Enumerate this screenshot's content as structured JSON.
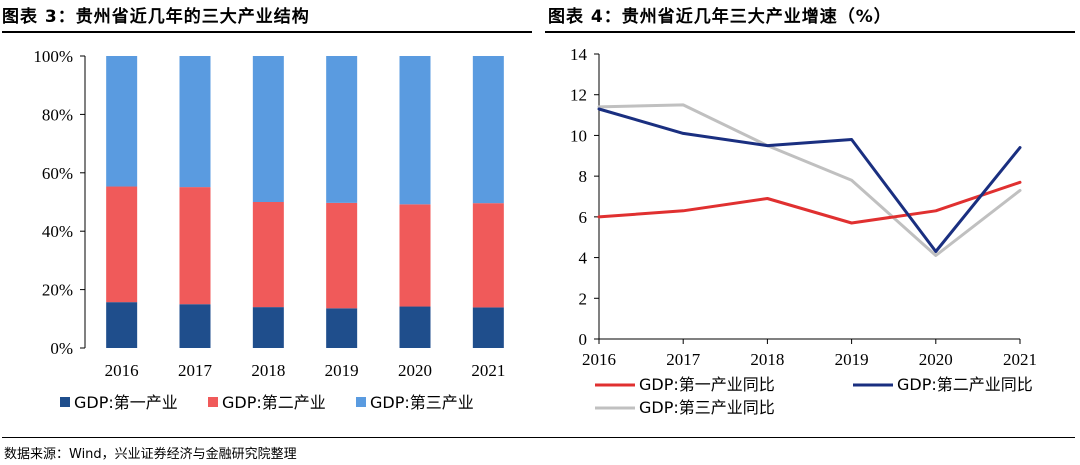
{
  "titles": {
    "left": "图表 3：贵州省近几年的三大产业结构",
    "right": "图表 4：贵州省近几年三大产业增速（%）"
  },
  "source": "数据来源：Wind，兴业证券经济与金融研究院整理",
  "chart_data": [
    {
      "type": "bar",
      "stacked": true,
      "title": "贵州省近几年的三大产业结构",
      "categories": [
        "2016",
        "2017",
        "2018",
        "2019",
        "2020",
        "2021"
      ],
      "yticks": [
        "0%",
        "20%",
        "40%",
        "60%",
        "80%",
        "100%"
      ],
      "ylim": [
        0,
        100
      ],
      "series": [
        {
          "name": "GDP:第一产业",
          "color": "#1f4e8c",
          "values": [
            15.7,
            15.0,
            14.0,
            13.6,
            14.2,
            13.9
          ]
        },
        {
          "name": "GDP:第二产业",
          "color": "#f05a5a",
          "values": [
            39.6,
            40.1,
            36.0,
            36.1,
            35.0,
            35.7
          ]
        },
        {
          "name": "GDP:第三产业",
          "color": "#5a9be0",
          "values": [
            44.7,
            44.9,
            50.0,
            50.3,
            50.8,
            50.4
          ]
        }
      ]
    },
    {
      "type": "line",
      "title": "贵州省近几年三大产业增速（%）",
      "categories": [
        "2016",
        "2017",
        "2018",
        "2019",
        "2020",
        "2021"
      ],
      "yticks": [
        "0",
        "2",
        "4",
        "6",
        "8",
        "10",
        "12",
        "14"
      ],
      "ylim": [
        0,
        14
      ],
      "series": [
        {
          "name": "GDP:第一产业同比",
          "color": "#e03030",
          "values": [
            6.0,
            6.3,
            6.9,
            5.7,
            6.3,
            7.7
          ]
        },
        {
          "name": "GDP:第二产业同比",
          "color": "#1a2f80",
          "values": [
            11.3,
            10.1,
            9.5,
            9.8,
            4.3,
            9.4
          ]
        },
        {
          "name": "GDP:第三产业同比",
          "color": "#c0c0c0",
          "values": [
            11.4,
            11.5,
            9.5,
            7.8,
            4.1,
            7.3
          ]
        }
      ]
    }
  ]
}
